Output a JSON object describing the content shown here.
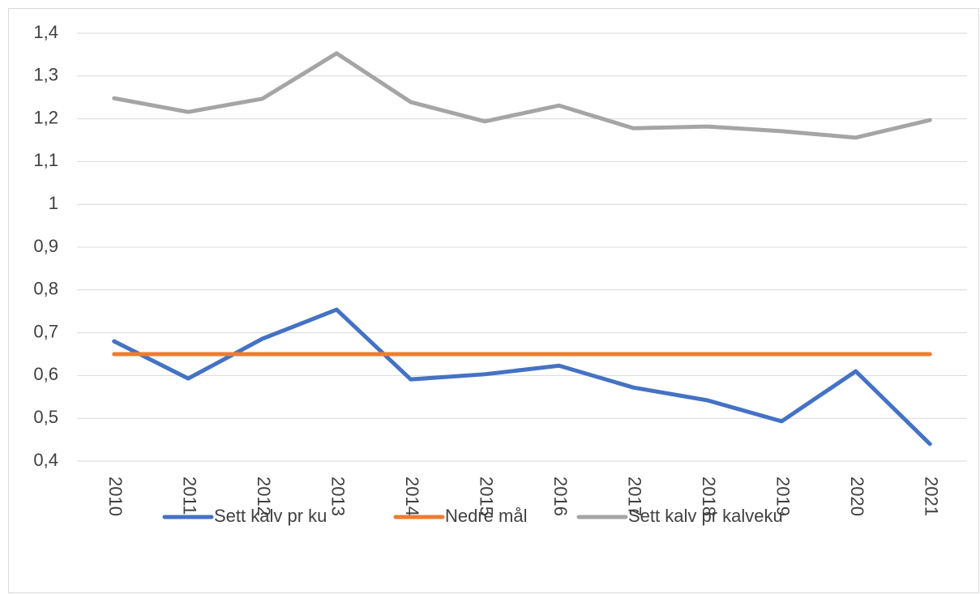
{
  "chart_data": {
    "type": "line",
    "categories": [
      "2010",
      "2011",
      "2012",
      "2013",
      "2014",
      "2015",
      "2016",
      "2017",
      "2018",
      "2019",
      "2020",
      "2021"
    ],
    "series": [
      {
        "name": "Sett kalv pr ku",
        "color": "#4472c4",
        "values": [
          0.68,
          0.593,
          0.686,
          0.754,
          0.591,
          0.603,
          0.623,
          0.572,
          0.542,
          0.493,
          0.61,
          0.44
        ]
      },
      {
        "name": "Nedre mål",
        "color": "#ed7d31",
        "values": [
          0.65,
          0.65,
          0.65,
          0.65,
          0.65,
          0.65,
          0.65,
          0.65,
          0.65,
          0.65,
          0.65,
          0.65
        ]
      },
      {
        "name": "Sett kalv pr kalveku",
        "color": "#a5a5a5",
        "values": [
          1.248,
          1.216,
          1.247,
          1.353,
          1.239,
          1.194,
          1.231,
          1.178,
          1.182,
          1.171,
          1.156,
          1.197
        ]
      }
    ],
    "ylim": [
      0.4,
      1.4
    ],
    "yticks": [
      {
        "value": 0.4,
        "label": "0,4"
      },
      {
        "value": 0.5,
        "label": "0,5"
      },
      {
        "value": 0.6,
        "label": "0,6"
      },
      {
        "value": 0.7,
        "label": "0,7"
      },
      {
        "value": 0.8,
        "label": "0,8"
      },
      {
        "value": 0.9,
        "label": "0,9"
      },
      1,
      {
        "value": 1.1,
        "label": "1,1"
      },
      {
        "value": 1.2,
        "label": "1,2"
      },
      {
        "value": 1.3,
        "label": "1,3"
      },
      {
        "value": 1.4,
        "label": "1,4"
      }
    ],
    "grid": true,
    "legend": "bottom"
  }
}
